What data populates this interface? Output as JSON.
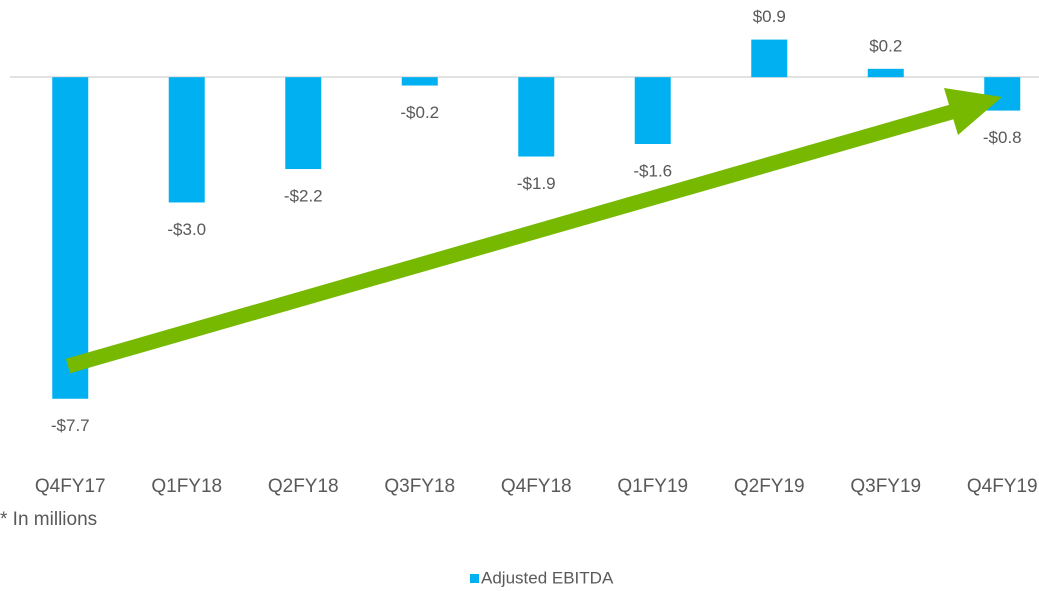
{
  "chart_data": {
    "type": "bar",
    "categories": [
      "Q4FY17",
      "Q1FY18",
      "Q2FY18",
      "Q3FY18",
      "Q4FY18",
      "Q1FY19",
      "Q2FY19",
      "Q3FY19",
      "Q4FY19"
    ],
    "series": [
      {
        "name": "Adjusted EBITDA",
        "color": "#00b0f0",
        "values": [
          -7.7,
          -3.0,
          -2.2,
          -0.2,
          -1.9,
          -1.6,
          0.9,
          0.2,
          -0.8
        ],
        "value_labels": [
          "-$7.7",
          "-$3.0",
          "-$2.2",
          "-$0.2",
          "-$1.9",
          "-$1.6",
          "$0.9",
          "$0.2",
          "-$0.8"
        ]
      }
    ],
    "ylim": [
      -8.4,
      1.8
    ],
    "footnote": "* In millions",
    "legend": "bottom"
  }
}
